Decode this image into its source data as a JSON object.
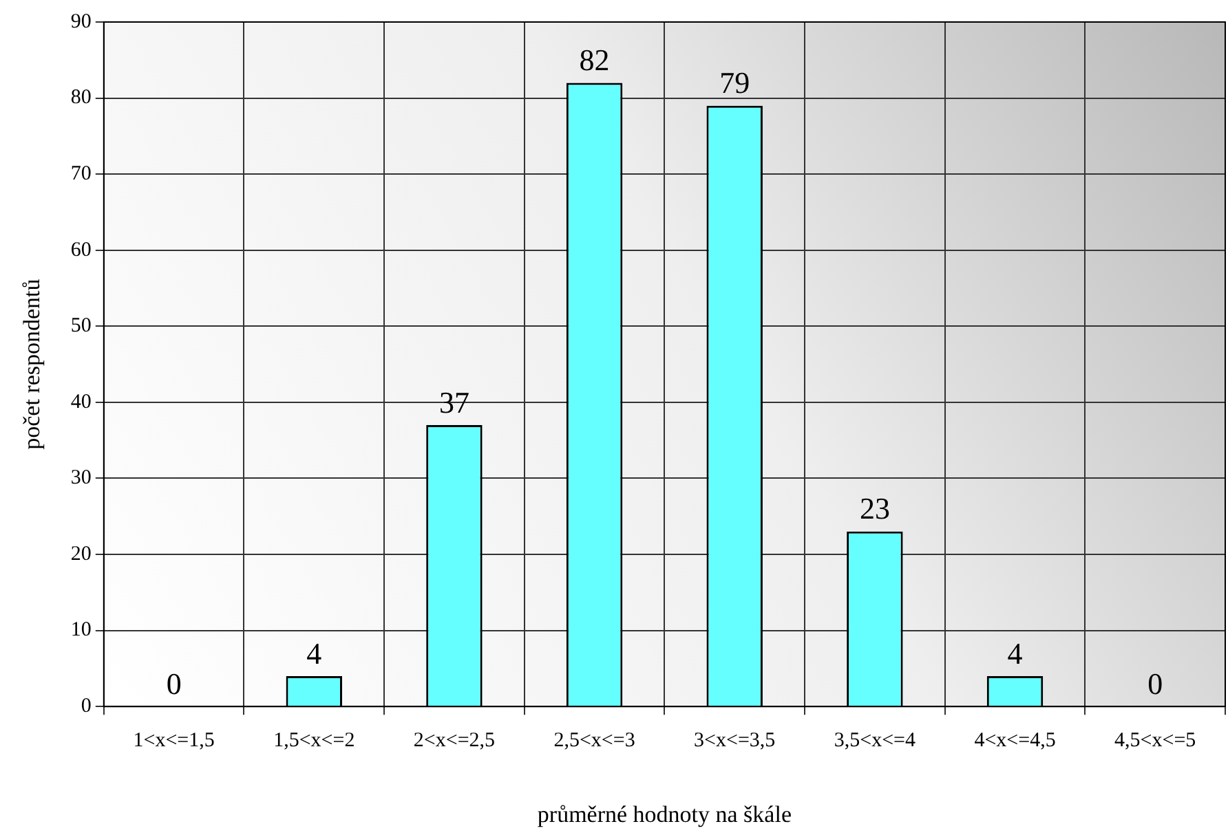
{
  "chart_data": {
    "type": "bar",
    "xlabel": "průměrné hodnoty na škále",
    "ylabel": "počet respondentů",
    "categories": [
      "1<x<=1,5",
      "1,5<x<=2",
      "2<x<=2,5",
      "2,5<x<=3",
      "3<x<=3,5",
      "3,5<x<=4",
      "4<x<=4,5",
      "4,5<x<=5"
    ],
    "values": [
      0,
      4,
      37,
      82,
      79,
      23,
      4,
      0
    ],
    "color": "#66ffff",
    "ylim": [
      0,
      90
    ],
    "yticks": [
      0,
      10,
      20,
      30,
      40,
      50,
      60,
      70,
      80,
      90
    ],
    "grid": true,
    "data_labels": true,
    "legend": false
  }
}
